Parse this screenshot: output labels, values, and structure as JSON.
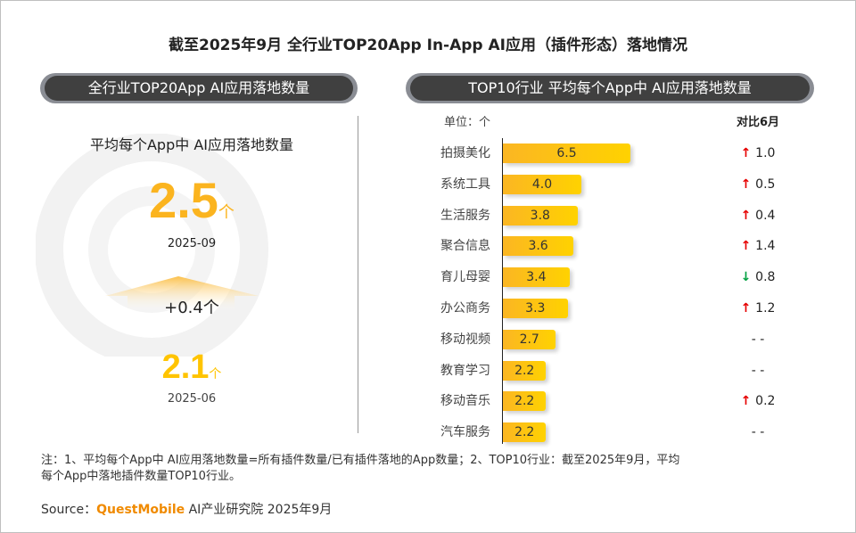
{
  "title": "截至2025年9月 全行业TOP20App In-App AI应用（插件形态）落地情况",
  "watermark": "QUESTMOBILE",
  "left_panel": {
    "header": "全行业TOP20App AI应用落地数量",
    "subtitle": "平均每个App中 AI应用落地数量",
    "current": {
      "value": "2.5",
      "unit": "个",
      "date": "2025-09"
    },
    "change": "+0.4个",
    "previous": {
      "value": "2.1",
      "unit": "个",
      "date": "2025-06"
    }
  },
  "right_panel": {
    "header": "TOP10行业 平均每个App中 AI应用落地数量"
  },
  "chart_data": {
    "type": "bar",
    "orientation": "horizontal",
    "unit_label": "单位：个",
    "compare_header": "对比6月",
    "categories": [
      "拍摄美化",
      "系统工具",
      "生活服务",
      "聚合信息",
      "育儿母婴",
      "办公商务",
      "移动视频",
      "教育学习",
      "移动音乐",
      "汽车服务"
    ],
    "values": [
      6.5,
      4.0,
      3.8,
      3.6,
      3.4,
      3.3,
      2.7,
      2.2,
      2.2,
      2.2
    ],
    "value_labels": [
      "6.5",
      "4.0",
      "3.8",
      "3.6",
      "3.4",
      "3.3",
      "2.7",
      "2.2",
      "2.2",
      "2.2"
    ],
    "changes": [
      {
        "dir": "up",
        "text": "1.0"
      },
      {
        "dir": "up",
        "text": "0.5"
      },
      {
        "dir": "up",
        "text": "0.4"
      },
      {
        "dir": "up",
        "text": "1.4"
      },
      {
        "dir": "down",
        "text": "0.8"
      },
      {
        "dir": "up",
        "text": "1.2"
      },
      {
        "dir": "none",
        "text": "- -"
      },
      {
        "dir": "none",
        "text": "- -"
      },
      {
        "dir": "up",
        "text": "0.2"
      },
      {
        "dir": "none",
        "text": "- -"
      }
    ],
    "colors": {
      "bar_start": "#fbb623",
      "bar_end": "#ffd200",
      "up": "#e60000",
      "down": "#00a040"
    }
  },
  "footnote": {
    "line1": "注：1、平均每个App中 AI应用落地数量=所有插件数量/已有插件落地的App数量；2、TOP10行业：截至2025年9月，平均",
    "line2": "每个App中落地插件数量TOP10行业。",
    "source_prefix": "Source：",
    "source_brand": "QuestMobile",
    "source_suffix": " AI产业研究院 2025年9月"
  }
}
